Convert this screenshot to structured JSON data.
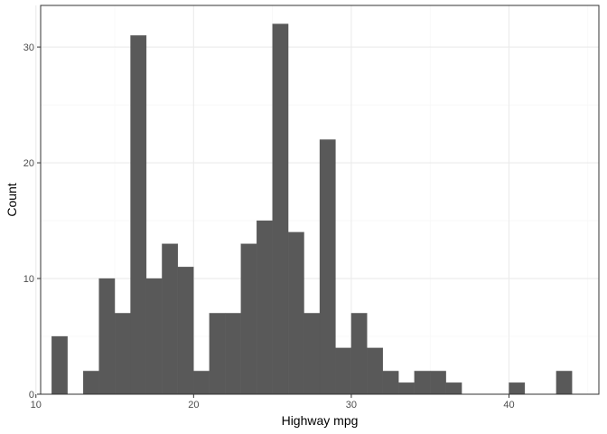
{
  "chart_data": {
    "type": "bar",
    "subtype": "histogram",
    "title": "",
    "xlabel": "Highway mpg",
    "ylabel": "Count",
    "xlim": [
      10.3,
      45.7
    ],
    "ylim": [
      0,
      33.6
    ],
    "binwidth": 1.0,
    "bin_start": 11.0,
    "x_ticks": [
      10,
      20,
      30,
      40
    ],
    "y_ticks": [
      0,
      10,
      20,
      30
    ],
    "values": [
      5,
      0,
      2,
      10,
      7,
      31,
      10,
      13,
      11,
      2,
      7,
      7,
      13,
      15,
      32,
      14,
      7,
      22,
      4,
      7,
      4,
      2,
      1,
      2,
      2,
      1,
      0,
      0,
      0,
      1,
      0,
      0,
      2
    ],
    "grid": true,
    "legend": "none",
    "colors": {
      "bar": "#595959",
      "panel_border": "#333333",
      "grid_major": "#ebebeb",
      "grid_minor": "#f5f5f5",
      "tick_label": "#4d4d4d",
      "axis_title": "#000000"
    }
  }
}
